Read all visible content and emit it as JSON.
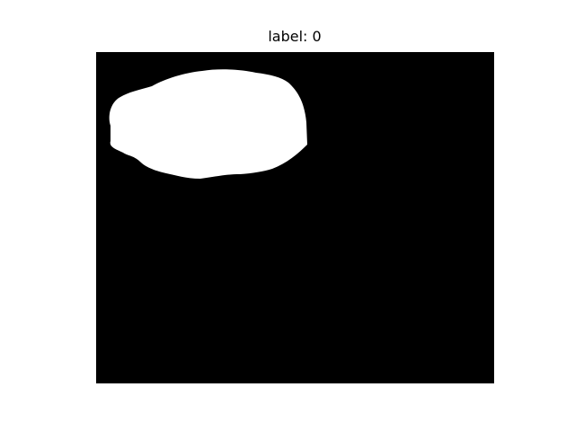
{
  "figure": {
    "title": "label: 0"
  },
  "mask": {
    "background_color": "#000000",
    "foreground_color": "#ffffff"
  }
}
